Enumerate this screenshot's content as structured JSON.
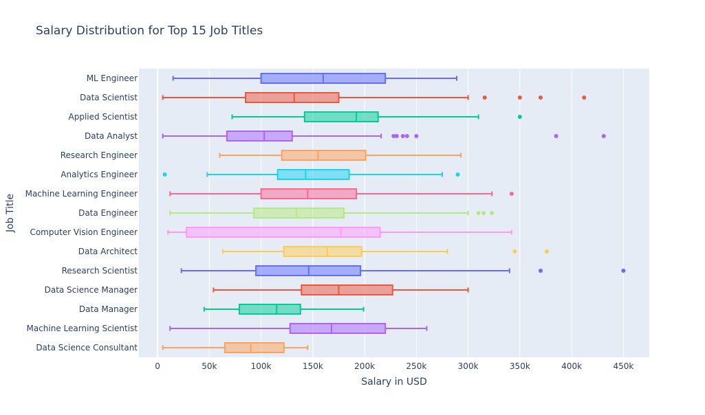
{
  "chart_data": {
    "type": "box",
    "orientation": "horizontal",
    "title": "Salary Distribution for Top 15 Job Titles",
    "xlabel": "Salary in USD",
    "ylabel": "Job Title",
    "xlim": [
      -18000,
      475000
    ],
    "x_ticks": [
      {
        "value": 0,
        "label": "0"
      },
      {
        "value": 50000,
        "label": "50k"
      },
      {
        "value": 100000,
        "label": "100k"
      },
      {
        "value": 150000,
        "label": "150k"
      },
      {
        "value": 200000,
        "label": "200k"
      },
      {
        "value": 250000,
        "label": "250k"
      },
      {
        "value": 300000,
        "label": "300k"
      },
      {
        "value": 350000,
        "label": "350k"
      },
      {
        "value": 400000,
        "label": "400k"
      },
      {
        "value": 450000,
        "label": "450k"
      }
    ],
    "grid": true,
    "plot_bgcolor": "#E5ECF6",
    "series": [
      {
        "name": "ML Engineer",
        "color": "#636EFA",
        "min": 15000,
        "q1": 100000,
        "median": 160000,
        "q3": 220000,
        "max": 289000,
        "outliers": []
      },
      {
        "name": "Data Scientist",
        "color": "#EF553B",
        "min": 5000,
        "q1": 85000,
        "median": 132000,
        "q3": 175000,
        "max": 300000,
        "outliers": [
          316000,
          350000,
          370000,
          412000
        ]
      },
      {
        "name": "Applied Scientist",
        "color": "#00CC96",
        "min": 72000,
        "q1": 142000,
        "median": 192000,
        "q3": 213000,
        "max": 310000,
        "outliers": [
          350000
        ]
      },
      {
        "name": "Data Analyst",
        "color": "#AB63FA",
        "min": 5000,
        "q1": 67000,
        "median": 103000,
        "q3": 130000,
        "max": 216000,
        "outliers": [
          228000,
          231000,
          237000,
          241000,
          250000,
          385000,
          431000
        ]
      },
      {
        "name": "Research Engineer",
        "color": "#FFA15A",
        "min": 60000,
        "q1": 120000,
        "median": 155000,
        "q3": 201000,
        "max": 293000,
        "outliers": []
      },
      {
        "name": "Analytics Engineer",
        "color": "#19D3F3",
        "min": 48000,
        "q1": 116000,
        "median": 143000,
        "q3": 185000,
        "max": 275000,
        "outliers": [
          7000,
          290000
        ]
      },
      {
        "name": "Machine Learning Engineer",
        "color": "#FF6692",
        "min": 12000,
        "q1": 100000,
        "median": 145000,
        "q3": 192000,
        "max": 323000,
        "outliers": [
          342000
        ]
      },
      {
        "name": "Data Engineer",
        "color": "#B6E880",
        "min": 12000,
        "q1": 93000,
        "median": 134000,
        "q3": 180000,
        "max": 300000,
        "outliers": [
          310000,
          315000,
          323000
        ]
      },
      {
        "name": "Computer Vision Engineer",
        "color": "#FF97FF",
        "min": 10000,
        "q1": 28000,
        "median": 177000,
        "q3": 215000,
        "max": 342000,
        "outliers": []
      },
      {
        "name": "Data Architect",
        "color": "#FECB52",
        "min": 63000,
        "q1": 122000,
        "median": 164000,
        "q3": 197000,
        "max": 280000,
        "outliers": [
          345000,
          376000
        ]
      },
      {
        "name": "Research Scientist",
        "color": "#636EFA",
        "min": 23000,
        "q1": 95000,
        "median": 146000,
        "q3": 196000,
        "max": 340000,
        "outliers": [
          370000,
          450000
        ]
      },
      {
        "name": "Data Science Manager",
        "color": "#EF553B",
        "min": 54000,
        "q1": 139000,
        "median": 175000,
        "q3": 227000,
        "max": 300000,
        "outliers": []
      },
      {
        "name": "Data Manager",
        "color": "#00CC96",
        "min": 45000,
        "q1": 79000,
        "median": 115000,
        "q3": 138000,
        "max": 199000,
        "outliers": []
      },
      {
        "name": "Machine Learning Scientist",
        "color": "#AB63FA",
        "min": 12000,
        "q1": 128000,
        "median": 168000,
        "q3": 220000,
        "max": 260000,
        "outliers": []
      },
      {
        "name": "Data Science Consultant",
        "color": "#FFA15A",
        "min": 5000,
        "q1": 65000,
        "median": 90000,
        "q3": 122000,
        "max": 145000,
        "outliers": []
      }
    ]
  }
}
